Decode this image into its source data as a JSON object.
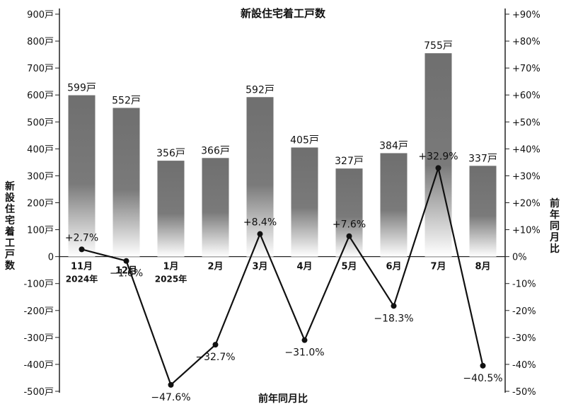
{
  "chart_data": {
    "type": "bar",
    "title": "新設住宅着工戸数",
    "xlabel": "前年同月比",
    "ylabel": "新設住宅着工戸数",
    "y2label": "前年同月比",
    "categories": [
      {
        "month": "11月",
        "year": "2024年"
      },
      {
        "month": "12月",
        "year": ""
      },
      {
        "month": "1月",
        "year": "2025年"
      },
      {
        "month": "2月",
        "year": ""
      },
      {
        "month": "3月",
        "year": ""
      },
      {
        "month": "4月",
        "year": ""
      },
      {
        "month": "5月",
        "year": ""
      },
      {
        "month": "6月",
        "year": ""
      },
      {
        "month": "7月",
        "year": ""
      },
      {
        "month": "8月",
        "year": ""
      }
    ],
    "bars": {
      "values": [
        599,
        552,
        356,
        366,
        592,
        405,
        327,
        384,
        755,
        337
      ],
      "labels": [
        "599戸",
        "552戸",
        "356戸",
        "366戸",
        "592戸",
        "405戸",
        "327戸",
        "384戸",
        "755戸",
        "337戸"
      ]
    },
    "line": {
      "values": [
        2.7,
        -1.6,
        -47.6,
        -32.7,
        8.4,
        -31.0,
        7.6,
        -18.3,
        32.9,
        -40.5
      ],
      "labels": [
        "+2.7%",
        "−1.6%",
        "−47.6%",
        "−32.7%",
        "+8.4%",
        "−31.0%",
        "+7.6%",
        "−18.3%",
        "+32.9%",
        "−40.5%"
      ]
    },
    "ylim": [
      -500,
      900
    ],
    "y2lim": [
      -50,
      90
    ],
    "left_ticks": [
      "900戸",
      "800戸",
      "700戸",
      "600戸",
      "500戸",
      "400戸",
      "300戸",
      "200戸",
      "100戸",
      "0",
      "-100戸",
      "-200戸",
      "-300戸",
      "-400戸",
      "-500戸"
    ],
    "right_ticks": [
      "+90%",
      "+80%",
      "+70%",
      "+60%",
      "+50%",
      "+40%",
      "+30%",
      "+20%",
      "+10%",
      "0%",
      "-10%",
      "-20%",
      "-30%",
      "-40%",
      "-50%"
    ],
    "colors": {
      "bar_top": "#6f6f6f",
      "bar_bottom": "#ffffff",
      "line": "#111111",
      "axis": "#222222",
      "text": "#111111"
    }
  }
}
